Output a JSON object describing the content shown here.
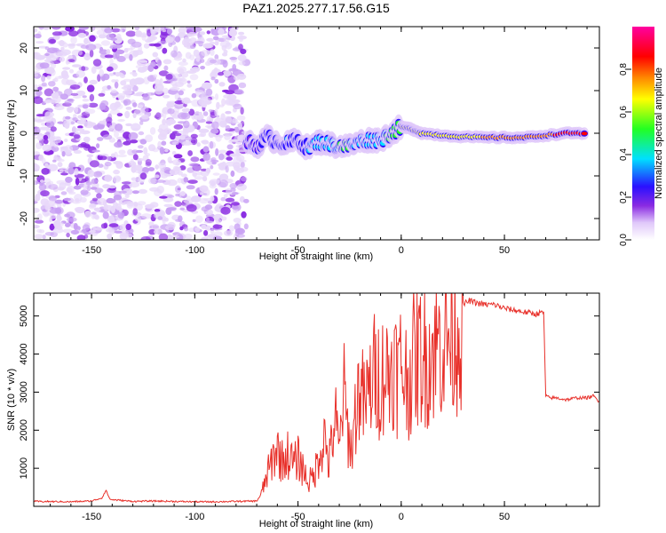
{
  "figure_title": "PAZ1.2025.277.17.56.G15",
  "colors": {
    "snr_line": "#e8302a",
    "axis": "#000000",
    "colormap": [
      "#e8d8fa",
      "#c8a0f4",
      "#8a2be2",
      "#2a10ff",
      "#00e0ff",
      "#22ff22",
      "#ffff00",
      "#ff8800",
      "#ff0000",
      "#ff00a0"
    ]
  },
  "chart_data": [
    {
      "type": "heatmap",
      "xlabel": "Height of straight line (km)",
      "ylabel": "Frequency (Hz)",
      "xlim": [
        -178,
        96
      ],
      "ylim": [
        -25,
        25
      ],
      "xticks": [
        -150,
        -100,
        -50,
        0,
        50
      ],
      "yticks": [
        -20,
        -10,
        0,
        10,
        20
      ],
      "colorbar": {
        "label": "Normalized spectral amplitude",
        "range": [
          0,
          1
        ],
        "ticks": [
          0.0,
          0.2,
          0.4,
          0.6,
          0.8
        ]
      },
      "noise_region_x": [
        -178,
        -75
      ],
      "signal_track": [
        {
          "x": -75,
          "freq": -2.0,
          "amp": 0.3
        },
        {
          "x": -70,
          "freq": -3.0,
          "amp": 0.4
        },
        {
          "x": -65,
          "freq": -1.0,
          "amp": 0.5
        },
        {
          "x": -60,
          "freq": -2.0,
          "amp": 0.5
        },
        {
          "x": -55,
          "freq": -2.5,
          "amp": 0.55
        },
        {
          "x": -50,
          "freq": -1.5,
          "amp": 0.5
        },
        {
          "x": -45,
          "freq": -3.5,
          "amp": 0.55
        },
        {
          "x": -40,
          "freq": -2.0,
          "amp": 0.6
        },
        {
          "x": -35,
          "freq": -2.5,
          "amp": 0.6
        },
        {
          "x": -30,
          "freq": -3.0,
          "amp": 0.65
        },
        {
          "x": -25,
          "freq": -3.0,
          "amp": 0.65
        },
        {
          "x": -20,
          "freq": -2.0,
          "amp": 0.6
        },
        {
          "x": -15,
          "freq": -1.5,
          "amp": 0.6
        },
        {
          "x": -10,
          "freq": -1.5,
          "amp": 0.6
        },
        {
          "x": -5,
          "freq": 0.0,
          "amp": 0.7
        },
        {
          "x": 0,
          "freq": 1.5,
          "amp": 0.75
        },
        {
          "x": 5,
          "freq": 1.0,
          "amp": 0.75
        },
        {
          "x": 10,
          "freq": 0.0,
          "amp": 0.8
        },
        {
          "x": 20,
          "freq": -0.5,
          "amp": 0.8
        },
        {
          "x": 30,
          "freq": -0.8,
          "amp": 0.8
        },
        {
          "x": 40,
          "freq": -1.0,
          "amp": 0.85
        },
        {
          "x": 50,
          "freq": -1.0,
          "amp": 0.9
        },
        {
          "x": 60,
          "freq": -1.0,
          "amp": 0.9
        },
        {
          "x": 70,
          "freq": -0.5,
          "amp": 0.9
        },
        {
          "x": 80,
          "freq": 0.0,
          "amp": 0.95
        },
        {
          "x": 90,
          "freq": 0.0,
          "amp": 0.95
        }
      ]
    },
    {
      "type": "line",
      "xlabel": "Height of straight line (km)",
      "ylabel": "SNR (10 * v/v)",
      "xlim": [
        -178,
        96
      ],
      "ylim": [
        0,
        5600
      ],
      "xticks": [
        -150,
        -100,
        -50,
        0,
        50
      ],
      "yticks": [
        1000,
        2000,
        3000,
        4000,
        5000
      ],
      "series": [
        {
          "points": [
            [
              -178,
              130
            ],
            [
              -160,
              120
            ],
            [
              -150,
              140
            ],
            [
              -145,
              220
            ],
            [
              -143,
              420
            ],
            [
              -141,
              180
            ],
            [
              -130,
              130
            ],
            [
              -120,
              140
            ],
            [
              -100,
              120
            ],
            [
              -90,
              120
            ],
            [
              -80,
              130
            ],
            [
              -70,
              140
            ],
            [
              -68,
              300
            ],
            [
              -65,
              900
            ],
            [
              -62,
              1400
            ],
            [
              -60,
              1700
            ],
            [
              -58,
              1300
            ],
            [
              -55,
              1500
            ],
            [
              -52,
              1200
            ],
            [
              -50,
              1400
            ],
            [
              -47,
              1000
            ],
            [
              -45,
              700
            ],
            [
              -42,
              900
            ],
            [
              -40,
              1500
            ],
            [
              -37,
              2000
            ],
            [
              -35,
              1200
            ],
            [
              -32,
              2600
            ],
            [
              -30,
              1500
            ],
            [
              -28,
              3400
            ],
            [
              -26,
              2200
            ],
            [
              -24,
              1600
            ],
            [
              -22,
              2800
            ],
            [
              -20,
              3500
            ],
            [
              -18,
              2900
            ],
            [
              -16,
              3200
            ],
            [
              -14,
              3700
            ],
            [
              -12,
              3900
            ],
            [
              -10,
              3600
            ],
            [
              -8,
              4000
            ],
            [
              -6,
              3700
            ],
            [
              -4,
              4300
            ],
            [
              -2,
              3800
            ],
            [
              0,
              4100
            ],
            [
              3,
              3600
            ],
            [
              6,
              4200
            ],
            [
              9,
              4400
            ],
            [
              12,
              4300
            ],
            [
              15,
              4500
            ],
            [
              18,
              4700
            ],
            [
              21,
              4800
            ],
            [
              24,
              4900
            ],
            [
              27,
              5100
            ],
            [
              30,
              5300
            ],
            [
              33,
              5400
            ],
            [
              36,
              5350
            ],
            [
              40,
              5300
            ],
            [
              45,
              5300
            ],
            [
              50,
              5200
            ],
            [
              55,
              5150
            ],
            [
              60,
              5100
            ],
            [
              65,
              5050
            ],
            [
              69,
              5100
            ],
            [
              70,
              2900
            ],
            [
              72,
              2850
            ],
            [
              75,
              2850
            ],
            [
              80,
              2800
            ],
            [
              85,
              2850
            ],
            [
              90,
              2850
            ],
            [
              93,
              2900
            ],
            [
              96,
              2750
            ]
          ]
        }
      ]
    }
  ]
}
